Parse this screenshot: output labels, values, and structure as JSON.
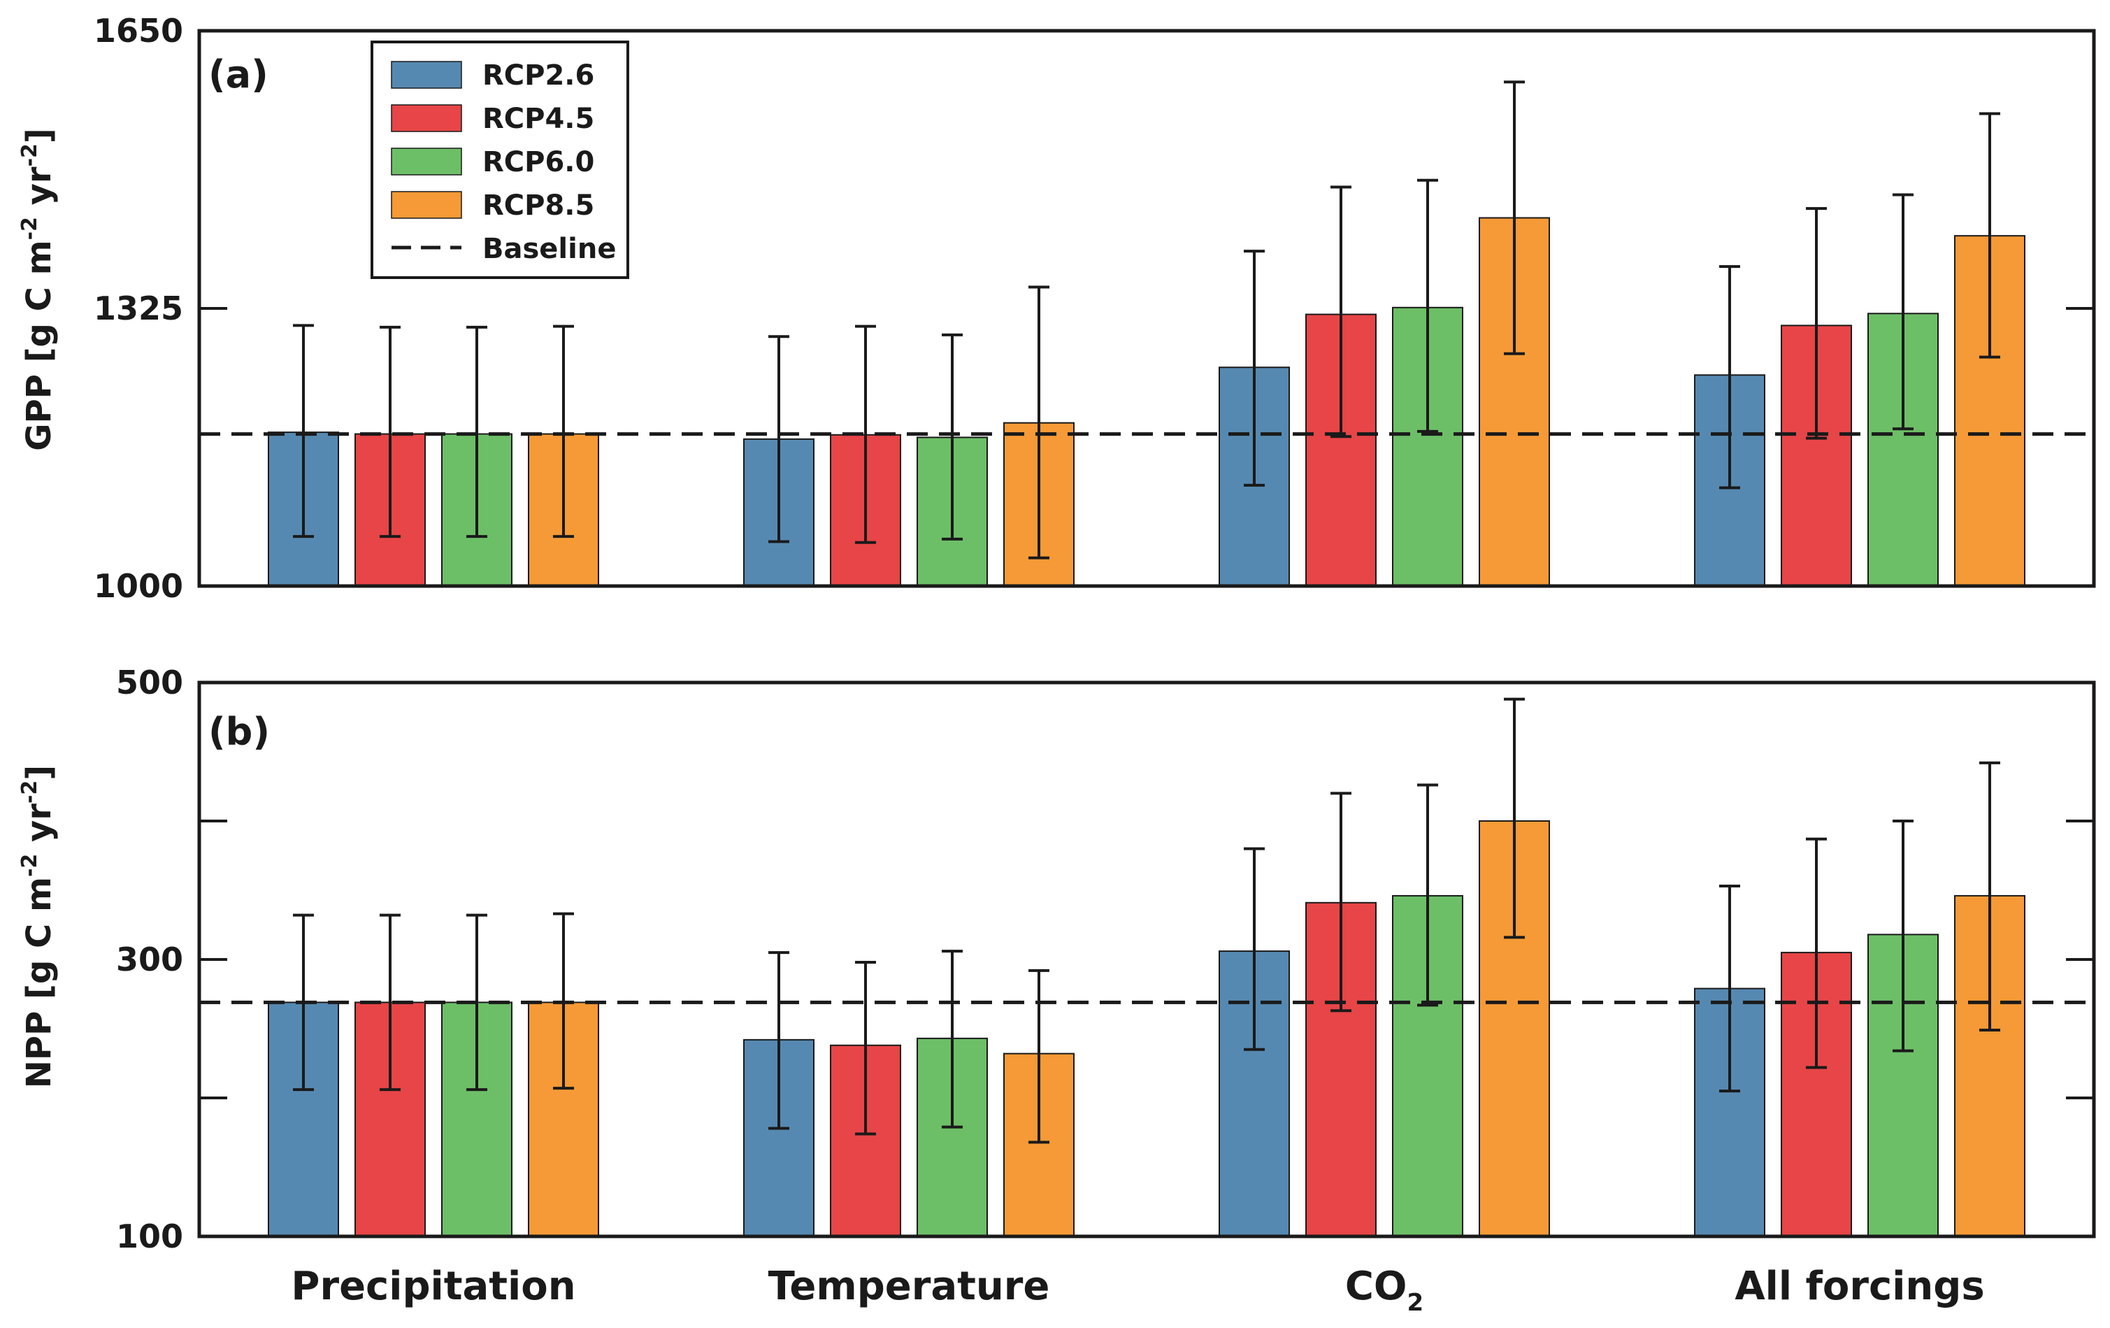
{
  "colors": {
    "RCP2.6": "#5689b1",
    "RCP4.5": "#e74547",
    "RCP6.0": "#6dbf67",
    "RCP8.5": "#f59a36",
    "axis": "#1a1a1a"
  },
  "legend": {
    "placement": "top-left",
    "entries": [
      "RCP2.6",
      "RCP4.5",
      "RCP6.0",
      "RCP8.5"
    ],
    "baseline_label": "Baseline"
  },
  "category_labels": {
    "precip": "Precipitation",
    "temp": "Temperature",
    "co2_main": "CO",
    "co2_sub": "2",
    "all": "All forcings"
  },
  "chart_data": [
    {
      "type": "bar",
      "panel_label": "(a)",
      "ylabel_main": "GPP [g C m",
      "ylabel_sup1": "-2",
      "ylabel_mid": " yr",
      "ylabel_sup2": "-2",
      "ylabel_end": "]",
      "ylim": [
        1000,
        1650
      ],
      "yticks": [
        1000,
        1325,
        1650
      ],
      "ytick_labels": [
        "1000",
        "1325",
        "1650"
      ],
      "baseline": 1178,
      "grid": false,
      "categories": [
        "Precipitation",
        "Temperature",
        "CO2",
        "All forcings"
      ],
      "series": [
        {
          "name": "RCP2.6",
          "values": [
            1180,
            1172,
            1256,
            1247
          ],
          "err_low": [
            1058,
            1052,
            1118,
            1115
          ],
          "err_high": [
            1305,
            1292,
            1392,
            1374
          ]
        },
        {
          "name": "RCP4.5",
          "values": [
            1178,
            1177,
            1318,
            1305
          ],
          "err_low": [
            1058,
            1051,
            1175,
            1173
          ],
          "err_high": [
            1303,
            1304,
            1467,
            1442
          ]
        },
        {
          "name": "RCP6.0",
          "values": [
            1178,
            1174,
            1326,
            1319
          ],
          "err_low": [
            1058,
            1055,
            1181,
            1184
          ],
          "err_high": [
            1303,
            1294,
            1475,
            1458
          ]
        },
        {
          "name": "RCP8.5",
          "values": [
            1178,
            1191,
            1431,
            1410
          ],
          "err_low": [
            1058,
            1033,
            1272,
            1268
          ],
          "err_high": [
            1304,
            1350,
            1590,
            1553
          ]
        }
      ]
    },
    {
      "type": "bar",
      "panel_label": "(b)",
      "ylabel_main": "NPP [g C m",
      "ylabel_sup1": "-2",
      "ylabel_mid": " yr",
      "ylabel_sup2": "-2",
      "ylabel_end": "]",
      "ylim": [
        100,
        500
      ],
      "yticks": [
        100,
        200,
        300,
        400,
        500
      ],
      "ytick_labels": [
        "100",
        "",
        "300",
        "",
        "500"
      ],
      "baseline": 269,
      "grid": false,
      "categories": [
        "Precipitation",
        "Temperature",
        "CO2",
        "All forcings"
      ],
      "series": [
        {
          "name": "RCP2.6",
          "values": [
            269,
            242,
            306,
            279
          ],
          "err_low": [
            206,
            178,
            235,
            205
          ],
          "err_high": [
            332,
            305,
            380,
            353
          ]
        },
        {
          "name": "RCP4.5",
          "values": [
            269,
            238,
            341,
            305
          ],
          "err_low": [
            206,
            174,
            263,
            222
          ],
          "err_high": [
            332,
            298,
            420,
            387
          ]
        },
        {
          "name": "RCP6.0",
          "values": [
            269,
            243,
            346,
            318
          ],
          "err_low": [
            206,
            179,
            267,
            234
          ],
          "err_high": [
            332,
            306,
            426,
            400
          ]
        },
        {
          "name": "RCP8.5",
          "values": [
            269,
            232,
            400,
            346
          ],
          "err_low": [
            207,
            168,
            316,
            249
          ],
          "err_high": [
            333,
            292,
            488,
            442
          ]
        }
      ]
    }
  ]
}
